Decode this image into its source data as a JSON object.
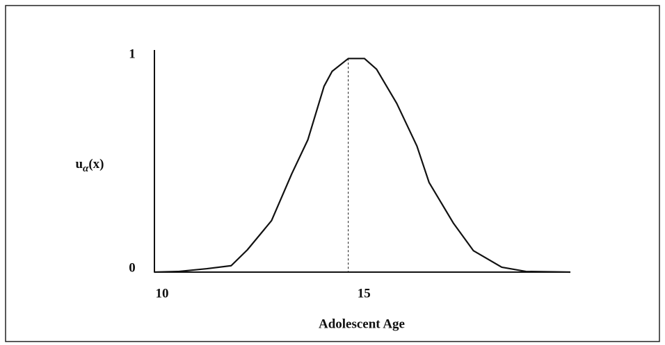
{
  "chart_data": {
    "type": "line",
    "xlabel": "Adolescent Age",
    "ylabel": {
      "base": "u",
      "sub": "α",
      "arg": "(x)"
    },
    "x": [
      10,
      10.6,
      11.3,
      11.9,
      12.3,
      12.9,
      13.4,
      13.8,
      14.2,
      14.4,
      14.8,
      15.2,
      15.5,
      16,
      16.5,
      16.8,
      17.4,
      17.9,
      18.6,
      19.2,
      20.3
    ],
    "series": [
      {
        "color": "#111111",
        "values": [
          0,
          0.003,
          0.016,
          0.03,
          0.104,
          0.241,
          0.46,
          0.62,
          0.87,
          0.94,
          1,
          1,
          0.95,
          0.79,
          0.59,
          0.42,
          0.23,
          0.1,
          0.023,
          0.003,
          0
        ]
      }
    ],
    "xlim": [
      10,
      20.3
    ],
    "xticks": [
      10,
      15
    ],
    "ylim": [
      0,
      1.04
    ],
    "yticks": [
      0,
      1
    ],
    "vline": 14.8,
    "grid": false
  }
}
